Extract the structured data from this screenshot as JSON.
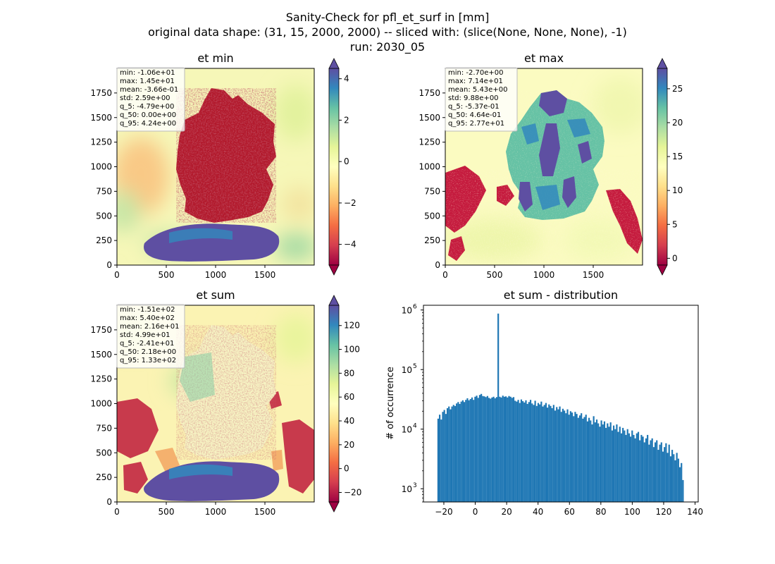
{
  "figure": {
    "title_lines": [
      "Sanity-Check for pfl_et_surf in [mm]",
      "original data shape: (31, 15, 2000, 2000) -- sliced with: (slice(None, None, None), -1)",
      "run: 2030_05"
    ]
  },
  "colors": {
    "hist_bar": "#1f77b4",
    "cmap_spectral": [
      "#9e0142",
      "#d53e4f",
      "#f46d43",
      "#fdae61",
      "#fee08b",
      "#ffffbf",
      "#e6f598",
      "#abdda4",
      "#66c2a5",
      "#3288bd",
      "#5e4fa2"
    ]
  },
  "chart_data": [
    {
      "type": "heatmap",
      "title": "et min",
      "xlim": [
        0,
        2000
      ],
      "ylim": [
        0,
        2000
      ],
      "xticks": [
        0,
        500,
        1000,
        1500
      ],
      "yticks": [
        0,
        250,
        500,
        750,
        1000,
        1250,
        1500,
        1750
      ],
      "colorbar": {
        "min": -5,
        "max": 4.5,
        "ticks": [
          -4,
          -2,
          0,
          2,
          4
        ],
        "ticklabels": [
          "−4",
          "−2",
          "0",
          "2",
          "4"
        ]
      },
      "stats": [
        "min: -1.06e+01",
        "max: 1.45e+01",
        "mean: -3.66e-01",
        "std: 2.59e+00",
        "q_5: -4.79e+00",
        "q_50: 0.00e+00",
        "q_95: 4.24e+00"
      ]
    },
    {
      "type": "heatmap",
      "title": "et max",
      "xlim": [
        0,
        2000
      ],
      "ylim": [
        0,
        2000
      ],
      "xticks": [
        0,
        500,
        1000,
        1500
      ],
      "yticks": [
        0,
        250,
        500,
        750,
        1000,
        1250,
        1500,
        1750
      ],
      "colorbar": {
        "min": -1,
        "max": 28,
        "ticks": [
          0,
          5,
          10,
          15,
          20,
          25
        ],
        "ticklabels": [
          "0",
          "5",
          "10",
          "15",
          "20",
          "25"
        ]
      },
      "stats": [
        "min: -2.70e+00",
        "max: 7.14e+01",
        "mean: 5.43e+00",
        "std: 9.88e+00",
        "q_5: -5.37e-01",
        "q_50: 4.64e-01",
        "q_95: 2.77e+01"
      ]
    },
    {
      "type": "heatmap",
      "title": "et sum",
      "xlim": [
        0,
        2000
      ],
      "ylim": [
        0,
        2000
      ],
      "xticks": [
        0,
        500,
        1000,
        1500
      ],
      "yticks": [
        0,
        250,
        500,
        750,
        1000,
        1250,
        1500,
        1750
      ],
      "colorbar": {
        "min": -28,
        "max": 137,
        "ticks": [
          -20,
          0,
          20,
          40,
          60,
          80,
          100,
          120
        ],
        "ticklabels": [
          "−20",
          "0",
          "20",
          "40",
          "60",
          "80",
          "100",
          "120"
        ]
      },
      "stats": [
        "min: -1.51e+02",
        "max: 5.40e+02",
        "mean: 2.16e+01",
        "std: 4.99e+01",
        "q_5: -2.41e+01",
        "q_50: 2.18e+00",
        "q_95: 1.33e+02"
      ]
    },
    {
      "type": "bar",
      "title": "et sum - distribution",
      "ylabel": "# of occurrence",
      "xlim": [
        -33,
        142
      ],
      "yscale": "log",
      "ylim": [
        600,
        1200000
      ],
      "xticks": [
        -20,
        0,
        20,
        40,
        60,
        80,
        100,
        120,
        140
      ],
      "xticklabels": [
        "−20",
        "0",
        "20",
        "40",
        "60",
        "80",
        "100",
        "120",
        "140"
      ],
      "ytick_labels": [
        {
          "value": 1000,
          "base": "10",
          "exp": "3"
        },
        {
          "value": 10000,
          "base": "10",
          "exp": "4"
        },
        {
          "value": 100000,
          "base": "10",
          "exp": "5"
        },
        {
          "value": 1000000,
          "base": "10",
          "exp": "6"
        }
      ],
      "bins": {
        "start": -24.1,
        "end": 132.8,
        "count": 160
      },
      "counts": [
        15000,
        17500,
        14500,
        19500,
        21000,
        18000,
        22500,
        24000,
        21500,
        24000,
        25500,
        24500,
        27000,
        28500,
        26500,
        29000,
        30500,
        28500,
        31000,
        33000,
        30500,
        32000,
        34000,
        31000,
        35000,
        36500,
        33500,
        37500,
        39000,
        36000,
        35500,
        34500,
        36000,
        33500,
        32500,
        34000,
        35000,
        33000,
        34500,
        870000,
        35000,
        34000,
        36500,
        35000,
        35500,
        34000,
        36000,
        35000,
        33500,
        34500,
        30000,
        29000,
        31000,
        27500,
        31500,
        29500,
        28000,
        30500,
        26500,
        28500,
        31000,
        27000,
        25500,
        30000,
        24500,
        27500,
        26000,
        29000,
        24000,
        25500,
        27500,
        23000,
        26000,
        24500,
        22500,
        25500,
        20500,
        23500,
        21500,
        24000,
        19500,
        22000,
        20500,
        18500,
        21500,
        17500,
        20000,
        19000,
        16500,
        19500,
        18000,
        15500,
        17000,
        18500,
        15000,
        16000,
        17500,
        13500,
        15500,
        14000,
        12000,
        16500,
        13000,
        14500,
        12500,
        11000,
        14000,
        12000,
        13500,
        10500,
        12500,
        11000,
        13000,
        9500,
        11500,
        10000,
        12000,
        9000,
        11000,
        8500,
        10500,
        9500,
        8000,
        10000,
        8500,
        7500,
        9500,
        8000,
        7000,
        8500,
        9000,
        6500,
        8000,
        7500,
        6000,
        7000,
        8000,
        5500,
        6500,
        7000,
        5000,
        6000,
        6500,
        4500,
        5500,
        6000,
        4200,
        5000,
        5800,
        4000,
        5500,
        3500,
        4500,
        3800,
        3000,
        4000,
        3200,
        2300,
        2700,
        1400
      ]
    }
  ]
}
